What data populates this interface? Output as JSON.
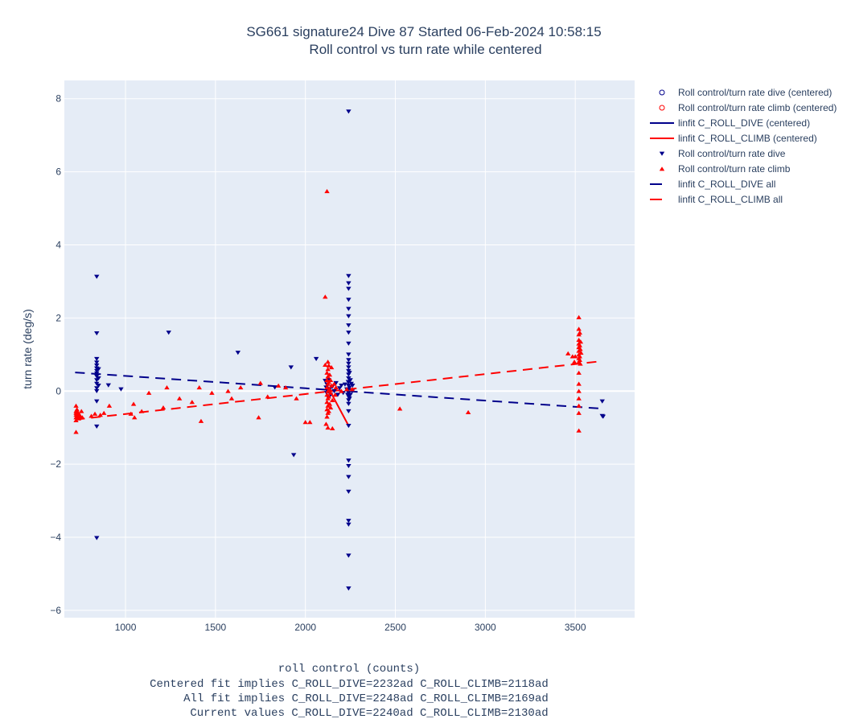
{
  "chart_data": {
    "type": "scatter",
    "title": "SG661 signature24 Dive 87 Started 06-Feb-2024 10:58:15",
    "subtitle": "Roll control vs turn rate while centered",
    "xlabel": "roll control (counts)",
    "ylabel": "turn rate (deg/s)",
    "xlim": [
      660,
      3830
    ],
    "ylim": [
      -6.2,
      8.5
    ],
    "xticks": [
      1000,
      1500,
      2000,
      2500,
      3000,
      3500
    ],
    "yticks": [
      -6,
      -4,
      -2,
      0,
      2,
      4,
      6,
      8
    ],
    "ytick_labels": [
      "−6",
      "−4",
      "−2",
      "0",
      "2",
      "4",
      "6",
      "8"
    ],
    "grid": true,
    "legend_position": "top-right outside",
    "footer": [
      "Centered fit implies C_ROLL_DIVE=2232ad C_ROLL_CLIMB=2118ad",
      "All fit implies C_ROLL_DIVE=2248ad C_ROLL_CLIMB=2169ad",
      "Current values C_ROLL_DIVE=2240ad C_ROLL_CLIMB=2130ad"
    ],
    "colors": {
      "plot_bg": "#e5ecf6",
      "grid": "#ffffff",
      "dive": "#00008b",
      "climb": "#ff0000"
    },
    "series": [
      {
        "name": "Roll control/turn rate dive (centered)",
        "kind": "marker",
        "symbol": "circle-open",
        "color": "#00008b",
        "points": []
      },
      {
        "name": "Roll control/turn rate climb (centered)",
        "kind": "marker",
        "symbol": "circle-open",
        "color": "#ff0000",
        "points": []
      },
      {
        "name": "linfit C_ROLL_DIVE (centered)",
        "kind": "line",
        "dash": "solid",
        "color": "#00008b",
        "points": [
          [
            2235,
            0.02
          ],
          [
            2245,
            -0.01
          ]
        ]
      },
      {
        "name": "linfit C_ROLL_CLIMB (centered)",
        "kind": "line",
        "dash": "solid",
        "color": "#ff0000",
        "points": [
          [
            2110,
            0.25
          ],
          [
            2240,
            -0.95
          ]
        ]
      },
      {
        "name": "Roll control/turn rate dive",
        "kind": "marker",
        "symbol": "triangle-down",
        "color": "#00008b",
        "points": [
          [
            840,
            3.13
          ],
          [
            840,
            1.58
          ],
          [
            840,
            0.88
          ],
          [
            840,
            0.78
          ],
          [
            840,
            0.7
          ],
          [
            840,
            0.62
          ],
          [
            840,
            0.55
          ],
          [
            840,
            0.48
          ],
          [
            840,
            0.4
          ],
          [
            840,
            0.3
          ],
          [
            840,
            0.2
          ],
          [
            840,
            0.08
          ],
          [
            840,
            0.0
          ],
          [
            840,
            -0.28
          ],
          [
            840,
            -0.97
          ],
          [
            840,
            -4.02
          ],
          [
            850,
            0.6
          ],
          [
            850,
            0.35
          ],
          [
            850,
            0.15
          ],
          [
            905,
            0.16
          ],
          [
            975,
            0.05
          ],
          [
            1240,
            1.6
          ],
          [
            1625,
            1.05
          ],
          [
            1830,
            0.1
          ],
          [
            1920,
            0.65
          ],
          [
            1935,
            -1.75
          ],
          [
            2060,
            0.88
          ],
          [
            2110,
            0.28
          ],
          [
            2115,
            0.1
          ],
          [
            2118,
            -0.05
          ],
          [
            2120,
            0.18
          ],
          [
            2122,
            0.0
          ],
          [
            2128,
            -0.18
          ],
          [
            2130,
            0.3
          ],
          [
            2135,
            0.05
          ],
          [
            2140,
            -0.1
          ],
          [
            2150,
            0.12
          ],
          [
            2160,
            0.0
          ],
          [
            2170,
            0.22
          ],
          [
            2180,
            -0.1
          ],
          [
            2190,
            0.08
          ],
          [
            2200,
            0.15
          ],
          [
            2210,
            -0.05
          ],
          [
            2220,
            0.18
          ],
          [
            2230,
            0.05
          ],
          [
            2235,
            -0.1
          ],
          [
            2238,
            0.25
          ],
          [
            2240,
            7.65
          ],
          [
            2240,
            3.15
          ],
          [
            2240,
            2.95
          ],
          [
            2240,
            2.8
          ],
          [
            2240,
            2.5
          ],
          [
            2240,
            2.25
          ],
          [
            2240,
            2.05
          ],
          [
            2240,
            1.8
          ],
          [
            2240,
            1.6
          ],
          [
            2240,
            1.3
          ],
          [
            2240,
            1.0
          ],
          [
            2240,
            0.85
          ],
          [
            2240,
            0.75
          ],
          [
            2240,
            0.65
          ],
          [
            2240,
            0.55
          ],
          [
            2240,
            0.45
          ],
          [
            2240,
            0.35
          ],
          [
            2240,
            0.25
          ],
          [
            2240,
            0.15
          ],
          [
            2240,
            0.05
          ],
          [
            2240,
            -0.05
          ],
          [
            2240,
            -0.15
          ],
          [
            2240,
            -0.25
          ],
          [
            2240,
            -0.35
          ],
          [
            2240,
            -0.55
          ],
          [
            2240,
            -0.95
          ],
          [
            2240,
            -1.9
          ],
          [
            2240,
            -2.05
          ],
          [
            2240,
            -2.35
          ],
          [
            2240,
            -2.75
          ],
          [
            2240,
            -3.55
          ],
          [
            2240,
            -3.65
          ],
          [
            2240,
            -4.5
          ],
          [
            2240,
            -5.4
          ],
          [
            2245,
            0.5
          ],
          [
            2245,
            0.1
          ],
          [
            2245,
            -0.2
          ],
          [
            2250,
            0.3
          ],
          [
            2250,
            -0.1
          ],
          [
            2255,
            0.2
          ],
          [
            2260,
            0.0
          ],
          [
            2262,
            0.15
          ],
          [
            3650,
            -0.28
          ],
          [
            3650,
            -0.68
          ],
          [
            3655,
            -0.7
          ]
        ]
      },
      {
        "name": "Roll control/turn rate climb",
        "kind": "marker",
        "symbol": "triangle-up",
        "color": "#ff0000",
        "points": [
          [
            725,
            -0.4
          ],
          [
            725,
            -0.55
          ],
          [
            725,
            -0.6
          ],
          [
            725,
            -0.65
          ],
          [
            725,
            -0.72
          ],
          [
            725,
            -0.8
          ],
          [
            725,
            -1.12
          ],
          [
            730,
            -0.5
          ],
          [
            730,
            -0.7
          ],
          [
            735,
            -0.58
          ],
          [
            735,
            -0.68
          ],
          [
            740,
            -0.62
          ],
          [
            740,
            -0.75
          ],
          [
            745,
            -0.65
          ],
          [
            750,
            -0.7
          ],
          [
            755,
            -0.55
          ],
          [
            760,
            -0.72
          ],
          [
            810,
            -0.68
          ],
          [
            830,
            -0.62
          ],
          [
            860,
            -0.65
          ],
          [
            880,
            -0.6
          ],
          [
            910,
            -0.4
          ],
          [
            1030,
            -0.62
          ],
          [
            1045,
            -0.35
          ],
          [
            1050,
            -0.72
          ],
          [
            1090,
            -0.55
          ],
          [
            1130,
            -0.05
          ],
          [
            1210,
            -0.45
          ],
          [
            1230,
            0.1
          ],
          [
            1300,
            -0.2
          ],
          [
            1370,
            -0.3
          ],
          [
            1410,
            0.1
          ],
          [
            1420,
            -0.82
          ],
          [
            1480,
            -0.05
          ],
          [
            1570,
            0.0
          ],
          [
            1590,
            -0.2
          ],
          [
            1640,
            0.1
          ],
          [
            1740,
            -0.72
          ],
          [
            1750,
            0.22
          ],
          [
            1790,
            -0.15
          ],
          [
            1850,
            0.15
          ],
          [
            1890,
            0.1
          ],
          [
            1950,
            -0.2
          ],
          [
            2000,
            -0.85
          ],
          [
            2025,
            -0.85
          ],
          [
            2110,
            2.58
          ],
          [
            2110,
            0.72
          ],
          [
            2115,
            -0.9
          ],
          [
            2120,
            5.47
          ],
          [
            2120,
            0.5
          ],
          [
            2120,
            0.3
          ],
          [
            2120,
            0.1
          ],
          [
            2120,
            -0.1
          ],
          [
            2120,
            -0.3
          ],
          [
            2120,
            -0.5
          ],
          [
            2120,
            -0.7
          ],
          [
            2125,
            0.8
          ],
          [
            2125,
            0.6
          ],
          [
            2125,
            0.4
          ],
          [
            2125,
            0.2
          ],
          [
            2125,
            0.0
          ],
          [
            2125,
            -0.2
          ],
          [
            2125,
            -0.4
          ],
          [
            2125,
            -0.6
          ],
          [
            2125,
            -1.0
          ],
          [
            2130,
            0.7
          ],
          [
            2130,
            0.25
          ],
          [
            2130,
            -0.15
          ],
          [
            2130,
            -0.55
          ],
          [
            2135,
            0.45
          ],
          [
            2135,
            0.05
          ],
          [
            2135,
            -0.35
          ],
          [
            2140,
            0.3
          ],
          [
            2140,
            -0.05
          ],
          [
            2140,
            -0.45
          ],
          [
            2145,
            0.65
          ],
          [
            2145,
            0.15
          ],
          [
            2150,
            -0.25
          ],
          [
            2150,
            -1.02
          ],
          [
            2160,
            0.2
          ],
          [
            2165,
            -0.1
          ],
          [
            2170,
            0.1
          ],
          [
            2200,
            0.0
          ],
          [
            2230,
            0.05
          ],
          [
            2260,
            0.05
          ],
          [
            2525,
            -0.48
          ],
          [
            2905,
            -0.58
          ],
          [
            3460,
            1.03
          ],
          [
            3485,
            0.95
          ],
          [
            3495,
            0.8
          ],
          [
            3500,
            0.95
          ],
          [
            3520,
            2.02
          ],
          [
            3520,
            1.7
          ],
          [
            3520,
            1.55
          ],
          [
            3520,
            1.4
          ],
          [
            3520,
            1.3
          ],
          [
            3520,
            1.2
          ],
          [
            3520,
            1.1
          ],
          [
            3520,
            1.0
          ],
          [
            3520,
            0.9
          ],
          [
            3520,
            0.8
          ],
          [
            3520,
            0.5
          ],
          [
            3520,
            0.2
          ],
          [
            3520,
            0.0
          ],
          [
            3520,
            -0.2
          ],
          [
            3520,
            -0.4
          ],
          [
            3520,
            -0.6
          ],
          [
            3520,
            -1.08
          ],
          [
            3525,
            1.6
          ],
          [
            3525,
            1.25
          ],
          [
            3525,
            0.95
          ],
          [
            3525,
            0.85
          ],
          [
            3528,
            1.15
          ],
          [
            3528,
            0.75
          ],
          [
            3530,
            1.35
          ],
          [
            3532,
            1.05
          ]
        ]
      },
      {
        "name": "linfit C_ROLL_DIVE all",
        "kind": "line",
        "dash": "dash",
        "color": "#00008b",
        "points": [
          [
            720,
            0.51
          ],
          [
            3650,
            -0.48
          ]
        ]
      },
      {
        "name": "linfit C_ROLL_CLIMB all",
        "kind": "line",
        "dash": "dash",
        "color": "#ff0000",
        "points": [
          [
            720,
            -0.78
          ],
          [
            3650,
            0.82
          ]
        ]
      }
    ]
  }
}
